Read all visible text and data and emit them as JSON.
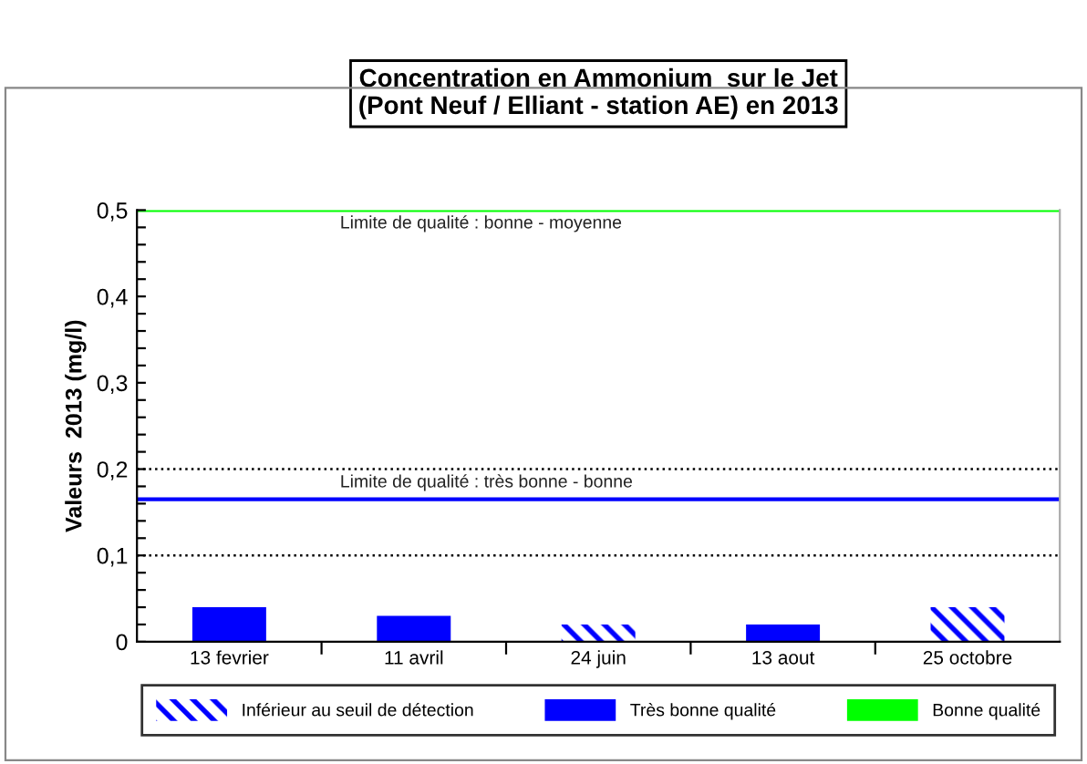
{
  "chart_data": {
    "type": "bar",
    "title": "Concentration en Ammonium  sur le Jet\n(Pont Neuf / Elliant - station AE) en 2013",
    "ylabel": "Valeurs  2013 (mg/l)",
    "categories": [
      "13 fevrier",
      "11 avril",
      "24 juin",
      "13 aout",
      "25 octobre"
    ],
    "series": [
      {
        "name": "Inférieur au seuil de détection",
        "color": "#0000ff",
        "values": [
          null,
          null,
          0.02,
          null,
          0.04
        ]
      },
      {
        "name": "Très bonne qualité",
        "color": "#0000ff",
        "values": [
          0.04,
          0.03,
          null,
          0.02,
          null
        ]
      },
      {
        "name": "Bonne qualité",
        "color": "#00ff00",
        "values": [
          null,
          null,
          null,
          null,
          null
        ]
      }
    ],
    "ylim": [
      0,
      0.5
    ],
    "yticks": [
      0,
      {
        "value": 0.02,
        "label": null
      },
      {
        "value": 0.04,
        "label": null
      },
      {
        "value": 0.06,
        "label": null
      },
      {
        "value": 0.08,
        "label": null
      },
      {
        "value": 0.1,
        "label": "0,1"
      },
      {
        "value": 0.12,
        "label": null
      },
      {
        "value": 0.14,
        "label": null
      },
      {
        "value": 0.16,
        "label": null
      },
      {
        "value": 0.18,
        "label": null
      },
      {
        "value": 0.2,
        "label": "0,2"
      },
      {
        "value": 0.22,
        "label": null
      },
      {
        "value": 0.24,
        "label": null
      },
      {
        "value": 0.26,
        "label": null
      },
      {
        "value": 0.28,
        "label": null
      },
      {
        "value": 0.3,
        "label": "0,3"
      },
      {
        "value": 0.32,
        "label": null
      },
      {
        "value": 0.34,
        "label": null
      },
      {
        "value": 0.36,
        "label": null
      },
      {
        "value": 0.38,
        "label": null
      },
      {
        "value": 0.4,
        "label": "0,4"
      },
      {
        "value": 0.42,
        "label": null
      },
      {
        "value": 0.44,
        "label": null
      },
      {
        "value": 0.46,
        "label": null
      },
      {
        "value": 0.48,
        "label": null
      },
      {
        "value": 0.5,
        "label": "0,5"
      }
    ],
    "ref_lines": [
      {
        "axis": "y",
        "value": 0.5,
        "label": "Limite de qualité : bonne - moyenne",
        "color": "#00ff00",
        "line_style": "solid"
      },
      {
        "axis": "y",
        "value": 0.2,
        "label": "Limite de qualité : très bonne - bonne",
        "color": "#000000",
        "line_style": "dotted"
      },
      {
        "axis": "y",
        "value": 0.1,
        "color": "#000000",
        "line_style": "dotted"
      },
      {
        "axis": "y",
        "value": 0.165,
        "color": "#0000ff",
        "line_style": "solid"
      }
    ],
    "legend": "bottom",
    "grid": false
  }
}
